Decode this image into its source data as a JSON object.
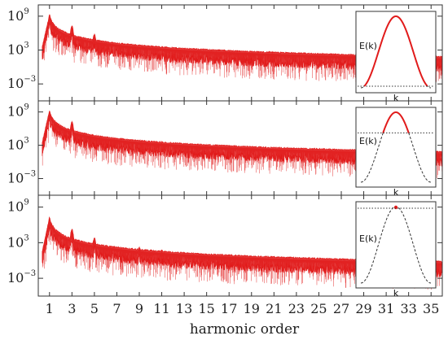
{
  "chart_data": {
    "type": "line",
    "xlabel": "harmonic order",
    "xlim": [
      0,
      36
    ],
    "x_ticks": [
      1,
      3,
      5,
      7,
      9,
      11,
      13,
      15,
      17,
      19,
      21,
      23,
      25,
      27,
      29,
      31,
      33,
      35
    ],
    "y_scale": "log",
    "y_ticks": [
      {
        "base": "10",
        "exp": "9",
        "log": 9
      },
      {
        "base": "10",
        "exp": "3",
        "log": 3
      },
      {
        "base": "10",
        "exp": "−3",
        "log": -3
      }
    ],
    "series_color": "#e11b1b",
    "panels": [
      {
        "id": "top",
        "ylim_log": [
          -6,
          11
        ],
        "harmonic_peaks_log": [
          [
            1,
            9.0
          ],
          [
            3,
            7.0
          ],
          [
            5,
            5.5
          ],
          [
            7,
            3.6
          ],
          [
            9,
            3.4
          ],
          [
            11,
            3.2
          ],
          [
            13,
            2.8
          ],
          [
            15,
            2.6
          ],
          [
            17,
            2.5
          ],
          [
            19,
            2.1
          ],
          [
            21,
            1.7
          ],
          [
            23,
            1.1
          ],
          [
            25,
            0.0
          ],
          [
            27,
            -0.8
          ],
          [
            29,
            -1.5
          ],
          [
            31,
            -1.8
          ],
          [
            33,
            -2.2
          ],
          [
            35,
            -2.4
          ]
        ],
        "noise_floor_log": -3.4,
        "inset": {
          "y_label": "E(k)",
          "x_label": "k",
          "dotted_level": "low"
        }
      },
      {
        "id": "middle",
        "ylim_log": [
          -6,
          11
        ],
        "harmonic_peaks_log": [
          [
            1,
            9.0
          ],
          [
            3,
            7.0
          ],
          [
            5,
            4.5
          ],
          [
            7,
            3.2
          ],
          [
            9,
            3.5
          ],
          [
            11,
            3.4
          ],
          [
            13,
            2.2
          ],
          [
            15,
            2.5
          ],
          [
            17,
            2.3
          ],
          [
            19,
            1.5
          ],
          [
            21,
            1.2
          ],
          [
            23,
            0.5
          ],
          [
            25,
            0.2
          ],
          [
            27,
            -1.0
          ],
          [
            29,
            -1.8
          ],
          [
            31,
            -2.2
          ],
          [
            33,
            -2.5
          ],
          [
            35,
            -2.7
          ]
        ],
        "noise_floor_log": -3.5,
        "inset": {
          "y_label": "E(k)",
          "x_label": "k",
          "dotted_level": "middle"
        }
      },
      {
        "id": "bottom",
        "ylim_log": [
          -6,
          11
        ],
        "harmonic_peaks_log": [
          [
            1,
            7.0
          ],
          [
            3,
            5.0
          ],
          [
            5,
            3.5
          ],
          [
            7,
            1.6
          ],
          [
            9,
            2.0
          ],
          [
            11,
            1.5
          ],
          [
            13,
            1.0
          ],
          [
            15,
            0.5
          ],
          [
            17,
            0.0
          ],
          [
            19,
            -0.5
          ],
          [
            21,
            -1.8
          ],
          [
            23,
            -2.2
          ],
          [
            25,
            -3.2
          ],
          [
            27,
            -3.4
          ],
          [
            29,
            -3.6
          ],
          [
            31,
            -3.8
          ],
          [
            33,
            -4.0
          ],
          [
            35,
            -4.2
          ]
        ],
        "noise_floor_log": -4.3,
        "inset": {
          "y_label": "E(k)",
          "x_label": "k",
          "dotted_level": "top"
        }
      }
    ]
  }
}
